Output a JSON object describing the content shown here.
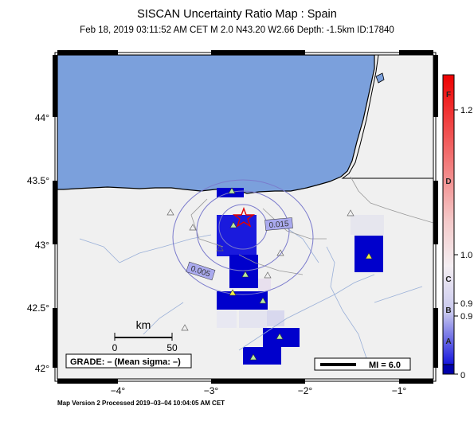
{
  "title": "SISCAN Uncertainty Ratio Map : Spain",
  "subtitle": "Feb 18, 2019 03:11:52 AM CET   M 2.0   N43.20 W2.66   Depth: -1.5km   ID:17840",
  "axes": {
    "lat_ticks": [
      "44°",
      "43.5°",
      "43°",
      "42.5°",
      "42°"
    ],
    "lon_ticks": [
      "−4°",
      "−3°",
      "−2°",
      "−1°"
    ]
  },
  "contours": [
    "0.015",
    "0.005"
  ],
  "scalebar": {
    "unit": "km",
    "ticks": [
      "0",
      "50"
    ]
  },
  "grade_box": "GRADE: – (Mean sigma: –)",
  "mi_legend": "MI = 6.0",
  "colorbar": {
    "letters": [
      "F",
      "D",
      "C",
      "B",
      "A"
    ],
    "values": [
      "1.2",
      "1.0",
      "0.9",
      "0.9",
      "0"
    ],
    "colors": {
      "top": "#e00000",
      "mid": "#f2eef2",
      "bottom": "#0000cc"
    }
  },
  "epicenter": {
    "lat": 43.2,
    "lon": -2.66
  },
  "footer": "Map Version 2 Processed 2019–03–04 10:04:05 AM CET"
}
